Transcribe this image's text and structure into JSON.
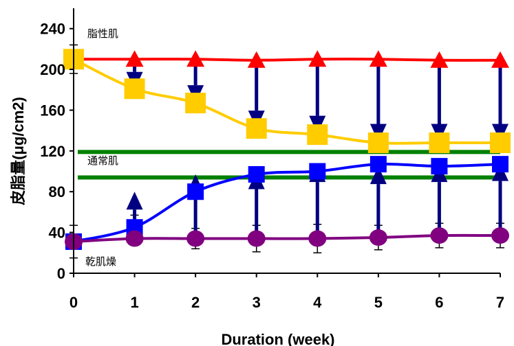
{
  "chart_data": {
    "type": "line",
    "xlabel": "Duration (week)",
    "ylabel": "皮脂量(μg/cm2)",
    "x": [
      0,
      1,
      2,
      3,
      4,
      5,
      6,
      7
    ],
    "xlim": [
      0,
      7
    ],
    "ylim": [
      0,
      260
    ],
    "x_ticks": [
      "0",
      "1",
      "2",
      "3",
      "4",
      "5",
      "6",
      "7"
    ],
    "y_ticks": [
      "0",
      "40",
      "80",
      "120",
      "160",
      "200",
      "240"
    ],
    "grid": false,
    "zone_labels": [
      "脂性肌",
      "通常肌",
      "乾肌燥"
    ],
    "reference_lines": [
      {
        "value": 119,
        "color": "#008000"
      },
      {
        "value": 94,
        "color": "#008000"
      }
    ],
    "series": [
      {
        "marker": "triangle",
        "color": "#ff0000",
        "values": [
          210,
          210,
          210,
          209,
          210,
          210,
          209,
          209
        ]
      },
      {
        "marker": "square",
        "color": "#ffcc00",
        "values": [
          210,
          181,
          167,
          142,
          136,
          128,
          128,
          128
        ]
      },
      {
        "marker": "square",
        "color": "#0000ff",
        "values": [
          31,
          45,
          80,
          97,
          100,
          107,
          105,
          107
        ]
      },
      {
        "marker": "circle",
        "color": "#800080",
        "values": [
          31,
          34,
          34,
          34,
          34,
          35,
          37,
          37
        ]
      }
    ],
    "arrows": {
      "color": "#000080",
      "down": {
        "from": [
          209,
          209,
          209,
          209,
          209,
          209,
          209
        ],
        "to": [
          180,
          167,
          142,
          137,
          129,
          129,
          129
        ]
      },
      "up": {
        "from": [
          34,
          34,
          34,
          34,
          35,
          37,
          37
        ],
        "to": [
          80,
          97,
          100,
          107,
          105,
          107,
          108
        ]
      }
    }
  }
}
